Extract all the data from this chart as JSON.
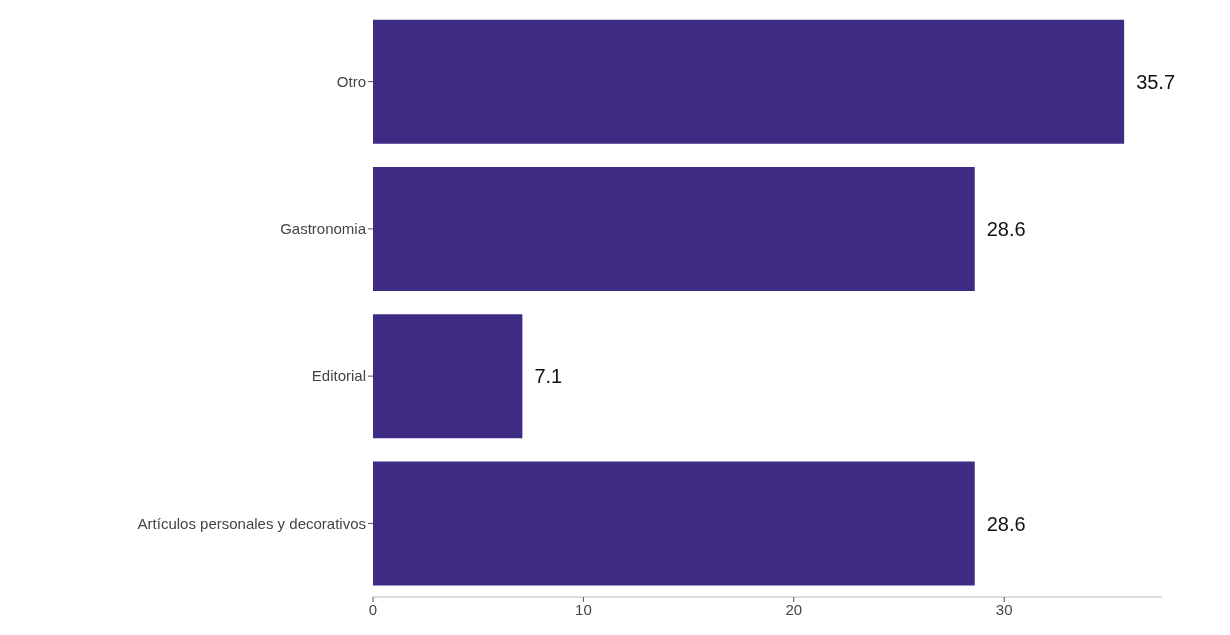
{
  "chart_data": {
    "type": "bar",
    "orientation": "horizontal",
    "categories": [
      "Otro",
      "Gastronomia",
      "Editorial",
      "Artículos personales y decorativos"
    ],
    "values": [
      35.7,
      28.6,
      7.1,
      28.6
    ],
    "color": "#3d2b84",
    "xlim": [
      0,
      37.5
    ],
    "xticks": [
      0,
      10,
      20,
      30
    ],
    "grid": false,
    "data_labels": true
  }
}
